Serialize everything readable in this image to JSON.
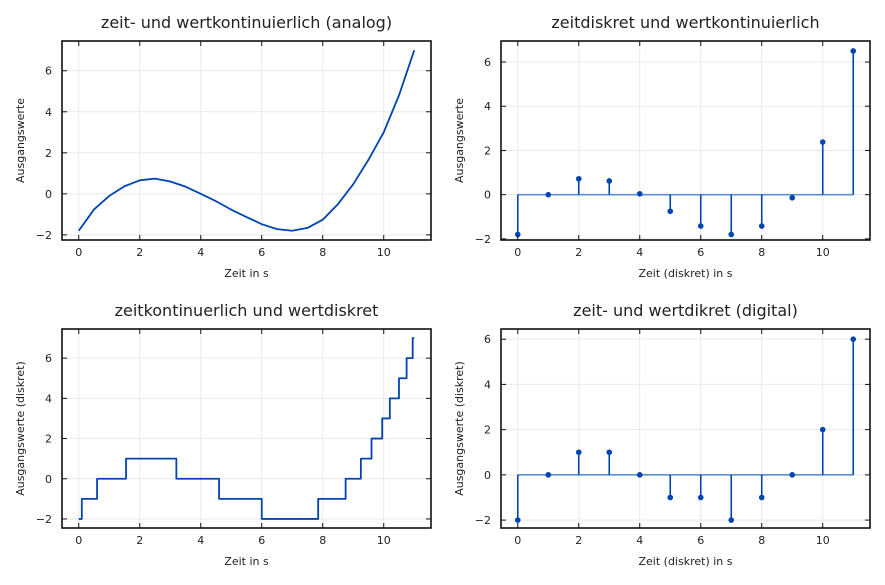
{
  "colors": {
    "line": "#0044b0",
    "baseline": "#5b8fd0",
    "grid": "#e9e9e9",
    "axis": "#111111"
  },
  "chart_data": [
    {
      "type": "line",
      "title": "zeit- und wertkontinuierlich (analog)",
      "xlabel": "Zeit in s",
      "ylabel": "Ausgangswerte",
      "xlim": [
        -0.55,
        11.55
      ],
      "ylim": [
        -2.25,
        7.45
      ],
      "xticks": [
        0,
        2,
        4,
        6,
        8,
        10
      ],
      "yticks": [
        -2,
        0,
        2,
        4,
        6
      ],
      "grid": true,
      "series": [
        {
          "x": [
            0,
            0.5,
            1,
            1.5,
            2,
            2.5,
            3,
            3.5,
            4,
            4.5,
            5,
            5.5,
            6,
            6.5,
            7,
            7.5,
            8,
            8.5,
            9,
            9.5,
            10,
            10.5,
            11
          ],
          "y": [
            -1.8,
            -0.76,
            -0.1,
            0.37,
            0.66,
            0.74,
            0.6,
            0.35,
            0.0,
            -0.36,
            -0.77,
            -1.13,
            -1.48,
            -1.72,
            -1.8,
            -1.66,
            -1.26,
            -0.5,
            0.47,
            1.66,
            3.0,
            4.8,
            7.0
          ]
        }
      ]
    },
    {
      "type": "stem",
      "title": "zeitdiskret und wertkontinuierlich",
      "xlabel": "Zeit (diskret) in s",
      "ylabel": "Ausgangswerte",
      "xlim": [
        -0.55,
        11.55
      ],
      "ylim": [
        -2.05,
        6.95
      ],
      "xticks": [
        0,
        2,
        4,
        6,
        8,
        10
      ],
      "yticks": [
        -2,
        0,
        2,
        4,
        6
      ],
      "grid": true,
      "series": [
        {
          "x": [
            0,
            1,
            2,
            3,
            4,
            5,
            6,
            7,
            8,
            9,
            10,
            11
          ],
          "y": [
            -1.8,
            0.0,
            0.72,
            0.62,
            0.04,
            -0.75,
            -1.42,
            -1.8,
            -1.42,
            -0.14,
            2.38,
            6.5
          ]
        }
      ]
    },
    {
      "type": "step",
      "title": "zeitkontinuerlich und wertdiskret",
      "xlabel": "Zeit in s",
      "ylabel": "Ausgangswerte (diskret)",
      "xlim": [
        -0.55,
        11.55
      ],
      "ylim": [
        -2.45,
        7.45
      ],
      "xticks": [
        0,
        2,
        4,
        6,
        8,
        10
      ],
      "yticks": [
        -2,
        0,
        2,
        4,
        6
      ],
      "grid": true,
      "series": [
        {
          "x": [
            0,
            0.1,
            0.1,
            0.6,
            0.6,
            1.55,
            1.55,
            3.2,
            3.2,
            4.6,
            4.6,
            6.0,
            6.0,
            7.85,
            7.85,
            8.75,
            8.75,
            9.25,
            9.25,
            9.6,
            9.6,
            9.95,
            9.95,
            10.2,
            10.2,
            10.5,
            10.5,
            10.75,
            10.75,
            10.95,
            10.95,
            11
          ],
          "y": [
            -2,
            -2,
            -1,
            -1,
            0,
            0,
            1,
            1,
            0,
            0,
            -1,
            -1,
            -2,
            -2,
            -1,
            -1,
            0,
            0,
            1,
            1,
            2,
            2,
            3,
            3,
            4,
            4,
            5,
            5,
            6,
            6,
            7,
            7
          ]
        }
      ]
    },
    {
      "type": "stem",
      "title": "zeit- und wertdikret (digital)",
      "xlabel": "Zeit (diskret) in s",
      "ylabel": "Ausgangswerte (diskret)",
      "xlim": [
        -0.55,
        11.55
      ],
      "ylim": [
        -2.35,
        6.45
      ],
      "xticks": [
        0,
        2,
        4,
        6,
        8,
        10
      ],
      "yticks": [
        -2,
        0,
        2,
        4,
        6
      ],
      "grid": true,
      "series": [
        {
          "x": [
            0,
            1,
            2,
            3,
            4,
            5,
            6,
            7,
            8,
            9,
            10,
            11
          ],
          "y": [
            -2,
            0,
            1,
            1,
            0,
            -1,
            -1,
            -2,
            -1,
            0,
            2,
            6
          ]
        }
      ]
    }
  ]
}
